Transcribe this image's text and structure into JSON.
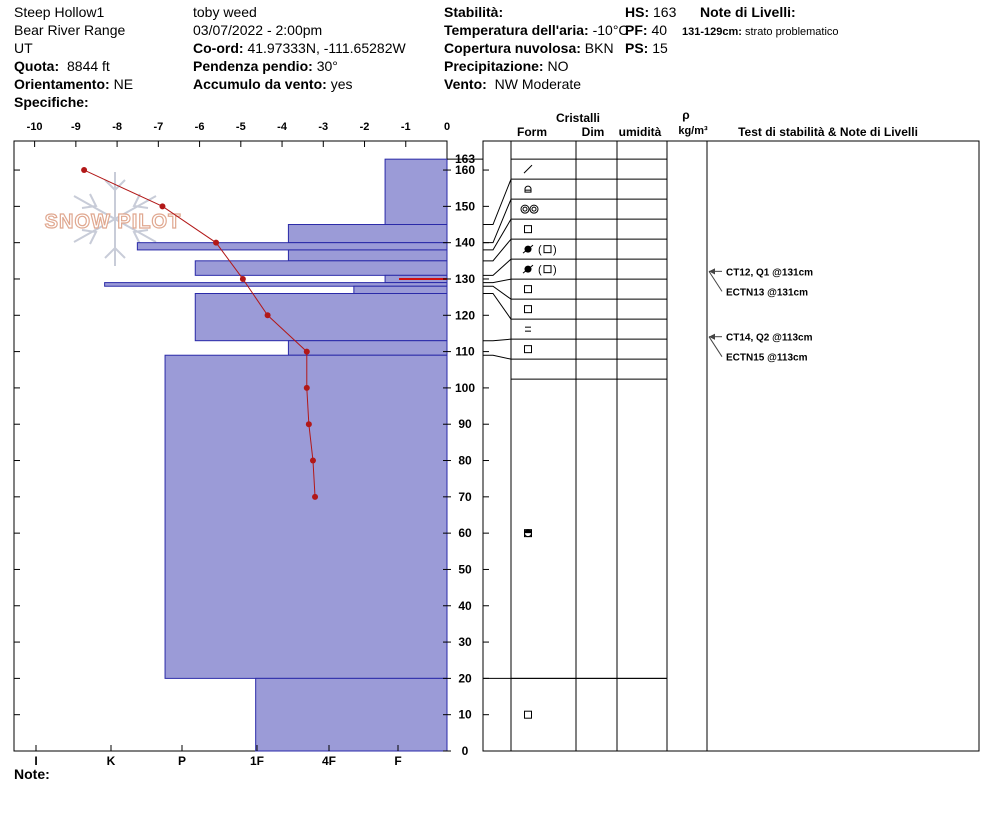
{
  "header": {
    "location": "Steep Hollow1",
    "range": "Bear River Range",
    "state": "UT",
    "quota_label": "Quota:",
    "quota_value": "8844 ft",
    "orient_label": "Orientamento:",
    "orient_value": "NE",
    "specifiche_label": "Specifiche:",
    "observer": "toby weed",
    "datetime": "03/07/2022 - 2:00pm",
    "coord_label": "Co-ord:",
    "coord_value": "41.97333N, -111.65282W",
    "pendenza_label": "Pendenza pendio:",
    "pendenza_value": "30°",
    "accumulo_label": "Accumulo da vento:",
    "accumulo_value": "yes",
    "stabilita_label": "Stabilità:",
    "temp_label": "Temperatura dell'aria:",
    "temp_value": "-10°C",
    "copertura_label": "Copertura nuvolosa:",
    "copertura_value": "BKN",
    "precip_label": "Precipitazione:",
    "precip_value": "NO",
    "vento_label": "Vento:",
    "vento_value": "NW Moderate",
    "hs_label": "HS:",
    "hs_value": "163",
    "pf_label": "PF:",
    "pf_value": "40",
    "ps_label": "PS:",
    "ps_value": "15",
    "note_livelli_label": "Note di Livelli:",
    "note_livelli_depth": "131-129cm:",
    "note_livelli_text": "strato problematico",
    "note_label": "Note:"
  },
  "columns": {
    "cristalli": "Cristalli",
    "form": "Form",
    "dim": "Dim",
    "umidita": "umidità",
    "rho": "ρ",
    "rho_unit": "kg/m³",
    "tests": "Test di stabilità & Note di Livelli"
  },
  "watermark": "SNOW PILOT",
  "chart_data": {
    "type": "snow-profile",
    "temperature_axis": {
      "ticks": [
        "-10",
        "-9",
        "-8",
        "-7",
        "-6",
        "-5",
        "-4",
        "-3",
        "-2",
        "-1",
        "0"
      ],
      "range": [
        -10.5,
        0
      ]
    },
    "hardness_axis": {
      "ticks": [
        "I",
        "K",
        "P",
        "1F",
        "4F",
        "F"
      ]
    },
    "depth_axis": {
      "ticks": [
        0,
        10,
        20,
        30,
        40,
        50,
        60,
        70,
        80,
        90,
        100,
        110,
        120,
        130,
        140,
        150,
        160
      ],
      "top_label": "163",
      "range": [
        0,
        168
      ]
    },
    "temperature_profile": [
      {
        "depth": 160,
        "temp": -8.8
      },
      {
        "depth": 150,
        "temp": -6.9
      },
      {
        "depth": 140,
        "temp": -5.6
      },
      {
        "depth": 130,
        "temp": -4.95
      },
      {
        "depth": 120,
        "temp": -4.35
      },
      {
        "depth": 110,
        "temp": -3.4
      },
      {
        "depth": 100,
        "temp": -3.4
      },
      {
        "depth": 90,
        "temp": -3.35
      },
      {
        "depth": 80,
        "temp": -3.25
      },
      {
        "depth": 70,
        "temp": -3.2
      }
    ],
    "layers": [
      {
        "top": 163,
        "bottom": 145,
        "hardness": 1.23,
        "form": "slash"
      },
      {
        "top": 145,
        "bottom": 140,
        "hardness": 3.15,
        "form": "round-cap"
      },
      {
        "top": 140,
        "bottom": 138,
        "hardness": 6.15,
        "form": "double-circle"
      },
      {
        "top": 138,
        "bottom": 135,
        "hardness": 3.15,
        "form": "square"
      },
      {
        "top": 135,
        "bottom": 131,
        "hardness": 5.0,
        "form": "bullet-square"
      },
      {
        "top": 131,
        "bottom": 129,
        "hardness": 1.23,
        "form": "bullet-square"
      },
      {
        "top": 129,
        "bottom": 128,
        "hardness": 6.8,
        "form": "square"
      },
      {
        "top": 128,
        "bottom": 126,
        "hardness": 1.85,
        "form": "square"
      },
      {
        "top": 126,
        "bottom": 113,
        "hardness": 5.0,
        "form": "equal"
      },
      {
        "top": 113,
        "bottom": 109,
        "hardness": 3.15,
        "form": "square"
      },
      {
        "top": 109,
        "bottom": 20,
        "hardness": 5.6,
        "form": "square"
      },
      {
        "top": 20,
        "bottom": 0,
        "hardness": 3.8,
        "form": "square"
      }
    ],
    "tests": [
      {
        "depth": 131,
        "lines": [
          "CT12, Q1 @131cm",
          "ECTN13 @131cm"
        ]
      },
      {
        "depth": 113,
        "lines": [
          "CT14, Q2 @113cm",
          "ECTN15 @113cm"
        ]
      }
    ],
    "problem_layer": {
      "top": 131,
      "bottom": 129
    },
    "colors": {
      "layer_fill": "#9b9bd7",
      "layer_stroke": "#2a2aa8",
      "temp_line": "#b21818",
      "problem_line": "#d01010",
      "watermark": "#e0a890"
    }
  }
}
